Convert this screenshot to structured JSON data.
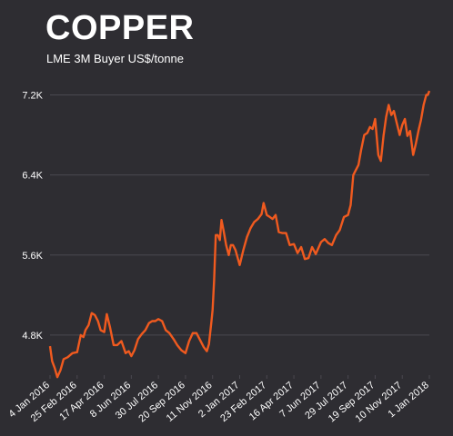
{
  "header": {
    "title": "COPPER",
    "subtitle": "LME 3M Buyer US$/tonne"
  },
  "colors": {
    "background": "#2e2d32",
    "line": "#f05a1f",
    "grid": "#4a4950",
    "text": "#ffffff"
  },
  "chart_data": {
    "type": "line",
    "title": "COPPER",
    "subtitle": "LME 3M Buyer US$/tonne",
    "xlabel": "",
    "ylabel": "",
    "ylim": [
      4400,
      7350
    ],
    "yticks": [
      4800,
      5600,
      6400,
      7200
    ],
    "ytick_labels": [
      "4.8K",
      "5.6K",
      "6.4K",
      "7.2K"
    ],
    "xlim": [
      "2016-01-04",
      "2018-01-01"
    ],
    "xticks": [
      "2016-01-04",
      "2016-02-25",
      "2016-04-17",
      "2016-06-08",
      "2016-07-30",
      "2016-09-20",
      "2016-11-11",
      "2017-01-02",
      "2017-02-23",
      "2017-04-16",
      "2017-06-07",
      "2017-07-29",
      "2017-09-19",
      "2017-11-10",
      "2018-01-01"
    ],
    "xtick_labels": [
      "4 Jan 2016",
      "25 Feb 2016",
      "17 Apr 2016",
      "8 Jun 2016",
      "30 Jul 2016",
      "20 Sep 2016",
      "11 Nov 2016",
      "2 Jan 2017",
      "23 Feb 2017",
      "16 Apr 2017",
      "7 Jun 2017",
      "29 Jul 2017",
      "19 Sep 2017",
      "10 Nov 2017",
      "1 Jan 2018"
    ],
    "grid": "horizontal",
    "series": [
      {
        "x": [
          "2016-01-04",
          "2016-01-08",
          "2016-01-13",
          "2016-01-18",
          "2016-01-24",
          "2016-01-30",
          "2016-02-07",
          "2016-02-16",
          "2016-02-25",
          "2016-03-03",
          "2016-03-08",
          "2016-03-12",
          "2016-03-18",
          "2016-03-24",
          "2016-03-30",
          "2016-04-05",
          "2016-04-10",
          "2016-04-17",
          "2016-04-22",
          "2016-04-28",
          "2016-05-05",
          "2016-05-12",
          "2016-05-20",
          "2016-05-28",
          "2016-06-03",
          "2016-06-08",
          "2016-06-14",
          "2016-06-21",
          "2016-06-28",
          "2016-07-05",
          "2016-07-12",
          "2016-07-18",
          "2016-07-24",
          "2016-07-30",
          "2016-08-06",
          "2016-08-13",
          "2016-08-20",
          "2016-08-28",
          "2016-09-04",
          "2016-09-12",
          "2016-09-20",
          "2016-09-27",
          "2016-10-04",
          "2016-10-11",
          "2016-10-18",
          "2016-10-25",
          "2016-10-31",
          "2016-11-04",
          "2016-11-07",
          "2016-11-09",
          "2016-11-11",
          "2016-11-14",
          "2016-11-17",
          "2016-11-21",
          "2016-11-25",
          "2016-11-28",
          "2016-12-02",
          "2016-12-07",
          "2016-12-12",
          "2016-12-16",
          "2016-12-20",
          "2016-12-25",
          "2017-01-02",
          "2017-01-09",
          "2017-01-16",
          "2017-01-23",
          "2017-01-30",
          "2017-02-06",
          "2017-02-13",
          "2017-02-17",
          "2017-02-23",
          "2017-03-01",
          "2017-03-06",
          "2017-03-12",
          "2017-03-18",
          "2017-03-25",
          "2017-04-01",
          "2017-04-08",
          "2017-04-16",
          "2017-04-23",
          "2017-04-30",
          "2017-05-07",
          "2017-05-14",
          "2017-05-21",
          "2017-05-28",
          "2017-06-07",
          "2017-06-14",
          "2017-06-21",
          "2017-06-28",
          "2017-07-06",
          "2017-07-13",
          "2017-07-21",
          "2017-07-29",
          "2017-08-03",
          "2017-08-08",
          "2017-08-13",
          "2017-08-18",
          "2017-08-23",
          "2017-08-29",
          "2017-09-04",
          "2017-09-09",
          "2017-09-14",
          "2017-09-19",
          "2017-09-25",
          "2017-09-30",
          "2017-10-05",
          "2017-10-10",
          "2017-10-15",
          "2017-10-20",
          "2017-10-25",
          "2017-10-30",
          "2017-11-05",
          "2017-11-10",
          "2017-11-15",
          "2017-11-20",
          "2017-11-25",
          "2017-12-01",
          "2017-12-06",
          "2017-12-11",
          "2017-12-16",
          "2017-12-21",
          "2017-12-26",
          "2017-12-29",
          "2018-01-01"
        ],
        "values": [
          4690,
          4540,
          4470,
          4380,
          4450,
          4560,
          4580,
          4620,
          4630,
          4800,
          4780,
          4850,
          4900,
          5020,
          5000,
          4940,
          4850,
          4830,
          5010,
          4880,
          4700,
          4700,
          4740,
          4620,
          4640,
          4590,
          4650,
          4760,
          4810,
          4850,
          4920,
          4940,
          4940,
          4960,
          4940,
          4850,
          4820,
          4760,
          4700,
          4650,
          4620,
          4740,
          4820,
          4820,
          4750,
          4680,
          4640,
          4710,
          4850,
          4950,
          5050,
          5350,
          5800,
          5800,
          5750,
          5950,
          5850,
          5700,
          5600,
          5700,
          5700,
          5650,
          5500,
          5650,
          5780,
          5870,
          5930,
          5960,
          6010,
          6120,
          6000,
          5980,
          5960,
          6000,
          5830,
          5820,
          5820,
          5700,
          5710,
          5620,
          5680,
          5560,
          5570,
          5680,
          5610,
          5730,
          5760,
          5720,
          5700,
          5800,
          5850,
          5980,
          6000,
          6100,
          6400,
          6450,
          6500,
          6650,
          6800,
          6820,
          6880,
          6860,
          6960,
          6600,
          6540,
          6790,
          6980,
          7100,
          7000,
          7040,
          6930,
          6800,
          6900,
          6960,
          6790,
          6840,
          6600,
          6710,
          6840,
          6950,
          7100,
          7200,
          7200,
          7240
        ]
      }
    ]
  }
}
